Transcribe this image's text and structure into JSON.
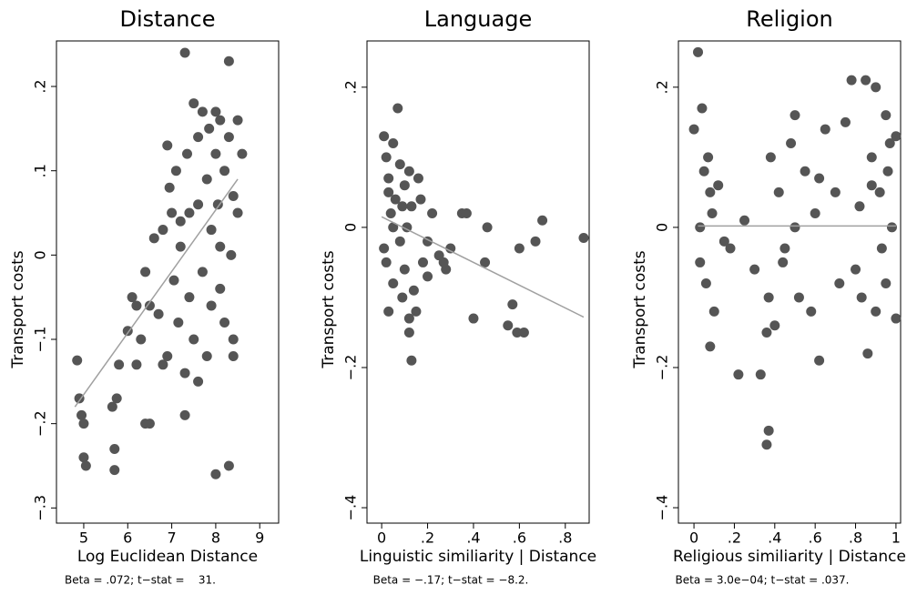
{
  "chart_data": [
    {
      "type": "scatter",
      "title": "Distance",
      "xlabel": "Log Euclidean Distance",
      "ylabel": "Transport costs",
      "note": "Beta = .072; t−stat =    31.",
      "color": "#555555",
      "fit_color": "#a0a0a0",
      "xlim": [
        4.38,
        9.43
      ],
      "ylim": [
        -0.318,
        0.254
      ],
      "xticks": [
        5,
        6,
        7,
        8,
        9
      ],
      "yticks": [
        {
          "value": -0.3,
          "label": "−.3"
        },
        {
          "value": -0.2,
          "label": "−.2"
        },
        {
          "value": -0.1,
          "label": "−.1"
        },
        0,
        {
          "value": 0.1,
          "label": ".1"
        },
        {
          "value": 0.2,
          "label": ".2"
        }
      ],
      "x": [
        4.85,
        4.9,
        5.0,
        4.95,
        5.0,
        5.05,
        5.7,
        5.7,
        5.75,
        5.65,
        5.8,
        6.0,
        6.1,
        6.2,
        6.3,
        6.4,
        6.5,
        6.5,
        6.6,
        6.7,
        6.8,
        6.9,
        6.95,
        7.0,
        7.05,
        7.1,
        7.15,
        7.2,
        7.3,
        7.3,
        7.35,
        7.4,
        7.5,
        7.5,
        7.6,
        7.6,
        7.7,
        7.7,
        7.8,
        7.8,
        7.85,
        7.9,
        7.9,
        8.0,
        8.0,
        8.05,
        8.1,
        8.1,
        8.2,
        8.2,
        8.3,
        8.3,
        8.35,
        8.4,
        8.4,
        8.5,
        8.6,
        8.0,
        8.3,
        8.4,
        7.3,
        7.2,
        6.4,
        6.2,
        7.6,
        6.9,
        8.1,
        7.4,
        6.8,
        8.5
      ],
      "values": [
        -0.125,
        -0.17,
        -0.2,
        -0.19,
        -0.24,
        -0.25,
        -0.255,
        -0.23,
        -0.17,
        -0.18,
        -0.13,
        -0.09,
        -0.05,
        -0.13,
        -0.1,
        -0.02,
        -0.06,
        -0.2,
        0.02,
        -0.07,
        0.03,
        -0.12,
        0.08,
        0.05,
        -0.03,
        0.1,
        -0.08,
        0.01,
        0.24,
        -0.19,
        0.12,
        -0.05,
        0.18,
        -0.1,
        0.06,
        0.14,
        -0.02,
        0.17,
        0.09,
        -0.12,
        0.15,
        0.03,
        -0.06,
        0.12,
        -0.26,
        0.06,
        0.16,
        -0.04,
        0.1,
        -0.08,
        0.14,
        -0.25,
        0.0,
        0.07,
        -0.12,
        0.16,
        0.12,
        0.17,
        0.23,
        -0.1,
        -0.14,
        0.04,
        -0.2,
        -0.06,
        -0.15,
        0.13,
        0.01,
        0.05,
        -0.13,
        0.05
      ],
      "fit": {
        "x": [
          4.8,
          8.5
        ],
        "values": [
          -0.18,
          0.09
        ]
      }
    },
    {
      "type": "scatter",
      "title": "Language",
      "xlabel": "Linguistic similiarity | Distance",
      "ylabel": "Transport costs",
      "note": "Beta = −.17; t−stat = −8.2.",
      "color": "#555555",
      "fit_color": "#a0a0a0",
      "xlim": [
        -0.064,
        0.904
      ],
      "ylim": [
        -0.422,
        0.266
      ],
      "xticks": [
        0,
        {
          "value": 0.2,
          "label": ".2"
        },
        {
          "value": 0.4,
          "label": ".4"
        },
        {
          "value": 0.6,
          "label": ".6"
        },
        {
          "value": 0.8,
          "label": ".8"
        }
      ],
      "yticks": [
        {
          "value": -0.4,
          "label": "−.4"
        },
        {
          "value": -0.2,
          "label": "−.2"
        },
        0,
        {
          "value": 0.2,
          "label": ".2"
        }
      ],
      "x": [
        0.01,
        0.02,
        0.02,
        0.03,
        0.03,
        0.04,
        0.05,
        0.05,
        0.06,
        0.07,
        0.08,
        0.08,
        0.09,
        0.1,
        0.1,
        0.11,
        0.12,
        0.12,
        0.13,
        0.14,
        0.15,
        0.16,
        0.17,
        0.18,
        0.2,
        0.22,
        0.25,
        0.28,
        0.3,
        0.35,
        0.37,
        0.4,
        0.45,
        0.46,
        0.55,
        0.57,
        0.59,
        0.62,
        0.6,
        0.67,
        0.7,
        0.88,
        0.05,
        0.13,
        0.12,
        0.03,
        0.09,
        0.01,
        0.2,
        0.27
      ],
      "values": [
        0.13,
        0.1,
        -0.05,
        0.07,
        -0.12,
        0.02,
        0.12,
        -0.08,
        0.04,
        0.17,
        -0.02,
        0.09,
        -0.1,
        0.06,
        -0.06,
        0.0,
        0.08,
        -0.13,
        0.03,
        -0.09,
        -0.12,
        0.07,
        0.04,
        -0.05,
        -0.02,
        0.02,
        -0.04,
        -0.06,
        -0.03,
        0.02,
        0.02,
        -0.13,
        -0.05,
        0.0,
        -0.14,
        -0.11,
        -0.15,
        -0.15,
        -0.03,
        -0.02,
        0.01,
        -0.015,
        0.0,
        -0.19,
        -0.15,
        0.05,
        0.03,
        -0.03,
        -0.07,
        -0.05
      ],
      "fit": {
        "x": [
          0.0,
          0.88
        ],
        "values": [
          0.015,
          -0.128
        ]
      }
    },
    {
      "type": "scatter",
      "title": "Religion",
      "xlabel": "Religious similiarity | Distance",
      "ylabel": "Transport costs",
      "note": "Beta = 3.0e−04; t−stat = .037.",
      "color": "#555555",
      "fit_color": "#a0a0a0",
      "xlim": [
        -0.077,
        1.023
      ],
      "ylim": [
        -0.422,
        0.266
      ],
      "xticks": [
        0,
        {
          "value": 0.2,
          "label": ".2"
        },
        {
          "value": 0.4,
          "label": ".4"
        },
        {
          "value": 0.6,
          "label": ".6"
        },
        {
          "value": 0.8,
          "label": ".8"
        },
        1
      ],
      "yticks": [
        {
          "value": -0.4,
          "label": "−.4"
        },
        {
          "value": -0.2,
          "label": "−.2"
        },
        0,
        {
          "value": 0.2,
          "label": ".2"
        }
      ],
      "x": [
        0.0,
        0.02,
        0.03,
        0.04,
        0.05,
        0.06,
        0.07,
        0.08,
        0.09,
        0.1,
        0.12,
        0.15,
        0.18,
        0.22,
        0.25,
        0.3,
        0.33,
        0.36,
        0.37,
        0.37,
        0.38,
        0.4,
        0.42,
        0.45,
        0.48,
        0.5,
        0.52,
        0.55,
        0.58,
        0.6,
        0.62,
        0.65,
        0.7,
        0.72,
        0.75,
        0.78,
        0.8,
        0.82,
        0.85,
        0.86,
        0.88,
        0.9,
        0.9,
        0.92,
        0.93,
        0.95,
        0.95,
        0.97,
        0.98,
        1.0,
        1.0,
        0.03,
        0.08,
        0.36,
        0.5,
        0.62,
        0.83,
        0.96,
        0.44,
        0.88
      ],
      "values": [
        0.14,
        0.25,
        -0.05,
        0.17,
        0.08,
        -0.08,
        0.1,
        -0.17,
        0.02,
        -0.12,
        0.06,
        -0.02,
        -0.03,
        -0.21,
        0.01,
        -0.06,
        -0.21,
        -0.31,
        -0.29,
        -0.1,
        0.1,
        -0.14,
        0.05,
        -0.03,
        0.12,
        0.16,
        -0.1,
        0.08,
        -0.12,
        0.02,
        -0.19,
        0.14,
        0.05,
        -0.08,
        0.15,
        0.21,
        -0.06,
        0.03,
        0.21,
        -0.18,
        0.1,
        0.2,
        -0.12,
        0.05,
        -0.03,
        0.16,
        -0.08,
        0.12,
        0.0,
        0.13,
        -0.13,
        0.0,
        0.05,
        -0.15,
        0.0,
        0.07,
        -0.1,
        0.08,
        -0.05,
        0.06
      ],
      "fit": {
        "x": [
          0.02,
          1.0
        ],
        "values": [
          0.002,
          0.002
        ]
      }
    }
  ]
}
